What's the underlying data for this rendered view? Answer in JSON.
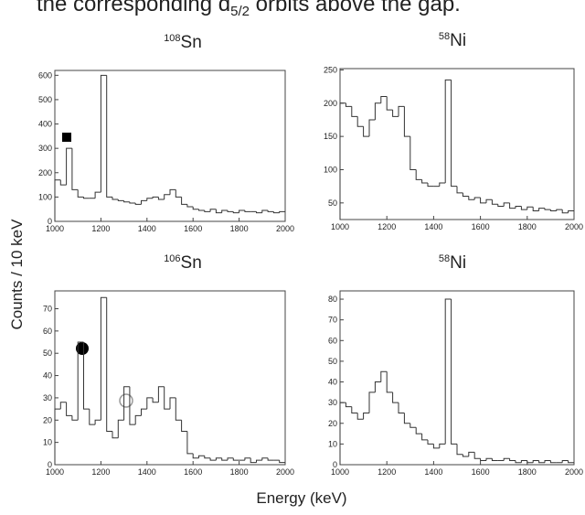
{
  "header": {
    "text": "the corresponding d",
    "subscript": "5/2",
    "rest": " orbits above the gap."
  },
  "ylabel": "Counts / 10 keV",
  "xlabel": "Energy (keV)",
  "chart_data": [
    {
      "type": "histogram",
      "title": {
        "mass": "108",
        "element": "Sn"
      },
      "color": "#333333",
      "bins": [
        1000,
        1025,
        1050,
        1075,
        1100,
        1125,
        1150,
        1175,
        1200,
        1225,
        1250,
        1275,
        1300,
        1325,
        1350,
        1375,
        1400,
        1425,
        1450,
        1475,
        1500,
        1525,
        1550,
        1575,
        1600,
        1625,
        1650,
        1675,
        1700,
        1725,
        1750,
        1775,
        1800,
        1825,
        1850,
        1875,
        1900,
        1925,
        1950,
        1975,
        2000
      ],
      "counts": [
        170,
        150,
        300,
        130,
        100,
        95,
        95,
        120,
        600,
        100,
        90,
        85,
        80,
        75,
        70,
        85,
        95,
        100,
        90,
        110,
        130,
        100,
        70,
        60,
        50,
        45,
        40,
        50,
        35,
        45,
        40,
        35,
        45,
        40,
        40,
        35,
        45,
        40,
        35,
        40
      ],
      "xlim": [
        1000,
        2000
      ],
      "xticks": [
        1000,
        1200,
        1400,
        1600,
        1800,
        2000
      ],
      "ylim": [
        0,
        620
      ],
      "yticks": [
        0,
        100,
        200,
        300,
        400,
        500,
        600
      ]
    },
    {
      "type": "histogram",
      "title": {
        "mass": "58",
        "element": "Ni"
      },
      "color": "#333333",
      "bins": [
        1000,
        1025,
        1050,
        1075,
        1100,
        1125,
        1150,
        1175,
        1200,
        1225,
        1250,
        1275,
        1300,
        1325,
        1350,
        1375,
        1400,
        1425,
        1450,
        1475,
        1500,
        1525,
        1550,
        1575,
        1600,
        1625,
        1650,
        1675,
        1700,
        1725,
        1750,
        1775,
        1800,
        1825,
        1850,
        1875,
        1900,
        1925,
        1950,
        1975,
        2000
      ],
      "counts": [
        200,
        195,
        180,
        165,
        150,
        175,
        200,
        210,
        190,
        180,
        195,
        150,
        100,
        85,
        80,
        75,
        75,
        80,
        235,
        75,
        65,
        60,
        55,
        58,
        50,
        55,
        48,
        45,
        50,
        42,
        45,
        40,
        44,
        38,
        42,
        40,
        38,
        40,
        35,
        38
      ],
      "xlim": [
        1000,
        2000
      ],
      "xticks": [
        1000,
        1200,
        1400,
        1600,
        1800,
        2000
      ],
      "ylim": [
        25,
        252
      ],
      "yticks": [
        50,
        100,
        150,
        200,
        250
      ]
    },
    {
      "type": "histogram",
      "title": {
        "mass": "106",
        "element": "Sn"
      },
      "color": "#333333",
      "bins": [
        1000,
        1025,
        1050,
        1075,
        1100,
        1125,
        1150,
        1175,
        1200,
        1225,
        1250,
        1275,
        1300,
        1325,
        1350,
        1375,
        1400,
        1425,
        1450,
        1475,
        1500,
        1525,
        1550,
        1575,
        1600,
        1625,
        1650,
        1675,
        1700,
        1725,
        1750,
        1775,
        1800,
        1825,
        1850,
        1875,
        1900,
        1925,
        1950,
        1975,
        2000
      ],
      "counts": [
        25,
        28,
        22,
        20,
        55,
        25,
        18,
        20,
        75,
        15,
        12,
        20,
        35,
        18,
        22,
        25,
        30,
        28,
        35,
        25,
        30,
        20,
        15,
        5,
        3,
        4,
        3,
        2,
        3,
        2,
        3,
        2,
        2,
        3,
        1,
        2,
        3,
        2,
        2,
        1
      ],
      "xlim": [
        1000,
        2000
      ],
      "xticks": [
        1000,
        1200,
        1400,
        1600,
        1800,
        2000
      ],
      "ylim": [
        0,
        78
      ],
      "yticks": [
        0,
        10,
        20,
        30,
        40,
        50,
        60,
        70
      ]
    },
    {
      "type": "histogram",
      "title": {
        "mass": "58",
        "element": "Ni"
      },
      "color": "#333333",
      "bins": [
        1000,
        1025,
        1050,
        1075,
        1100,
        1125,
        1150,
        1175,
        1200,
        1225,
        1250,
        1275,
        1300,
        1325,
        1350,
        1375,
        1400,
        1425,
        1450,
        1475,
        1500,
        1525,
        1550,
        1575,
        1600,
        1625,
        1650,
        1675,
        1700,
        1725,
        1750,
        1775,
        1800,
        1825,
        1850,
        1875,
        1900,
        1925,
        1950,
        1975,
        2000
      ],
      "counts": [
        30,
        28,
        25,
        22,
        25,
        35,
        40,
        45,
        35,
        30,
        25,
        20,
        18,
        15,
        12,
        10,
        8,
        10,
        80,
        10,
        5,
        4,
        6,
        3,
        2,
        3,
        2,
        2,
        3,
        2,
        1,
        2,
        1,
        2,
        1,
        2,
        1,
        1,
        2,
        1
      ],
      "xlim": [
        1000,
        2000
      ],
      "xticks": [
        1000,
        1200,
        1400,
        1600,
        1800,
        2000
      ],
      "ylim": [
        0,
        84
      ],
      "yticks": [
        0,
        10,
        20,
        30,
        40,
        50,
        60,
        70,
        80
      ]
    }
  ]
}
